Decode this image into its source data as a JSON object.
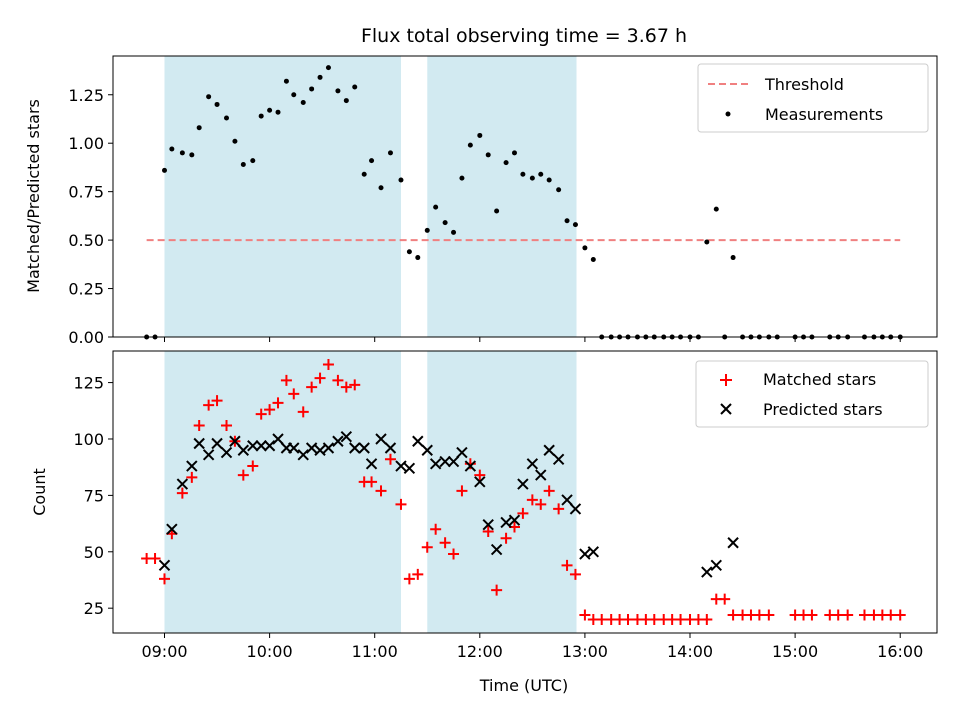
{
  "chart_data": {
    "type": "scatter",
    "title": "Flux total observing time = 3.67 h",
    "xlabel": "Time (UTC)",
    "x_ticks": [
      {
        "hour": 9,
        "label": "09:00"
      },
      {
        "hour": 10,
        "label": "10:00"
      },
      {
        "hour": 11,
        "label": "11:00"
      },
      {
        "hour": 12,
        "label": "12:00"
      },
      {
        "hour": 13,
        "label": "13:00"
      },
      {
        "hour": 14,
        "label": "14:00"
      },
      {
        "hour": 15,
        "label": "15:00"
      },
      {
        "hour": 16,
        "label": "16:00"
      }
    ],
    "xlim": [
      8.51,
      16.35
    ],
    "shaded_intervals": [
      [
        9.0,
        11.25
      ],
      [
        11.5,
        12.92
      ]
    ],
    "colors": {
      "shade": "#add8e6",
      "threshold": "#f08080",
      "matched": "#ff0000",
      "predicted": "#000000",
      "measurement": "#000000"
    },
    "top_panel": {
      "ylabel": "Matched/Predicted stars",
      "ylim": [
        0,
        1.45
      ],
      "yticks": [
        "0.00",
        "0.25",
        "0.50",
        "0.75",
        "1.00",
        "1.25"
      ],
      "threshold": {
        "value": 0.5,
        "x_range": [
          8.83,
          16.0
        ],
        "label": "Threshold"
      },
      "legend": [
        "Threshold",
        "Measurements"
      ],
      "measurements": [
        [
          8.83,
          0.0
        ],
        [
          8.91,
          0.0
        ],
        [
          9.0,
          0.86
        ],
        [
          9.07,
          0.97
        ],
        [
          9.17,
          0.95
        ],
        [
          9.26,
          0.94
        ],
        [
          9.33,
          1.08
        ],
        [
          9.42,
          1.24
        ],
        [
          9.5,
          1.2
        ],
        [
          9.59,
          1.13
        ],
        [
          9.67,
          1.01
        ],
        [
          9.75,
          0.89
        ],
        [
          9.84,
          0.91
        ],
        [
          9.92,
          1.14
        ],
        [
          10.0,
          1.17
        ],
        [
          10.08,
          1.16
        ],
        [
          10.16,
          1.32
        ],
        [
          10.23,
          1.25
        ],
        [
          10.32,
          1.21
        ],
        [
          10.4,
          1.28
        ],
        [
          10.48,
          1.34
        ],
        [
          10.56,
          1.39
        ],
        [
          10.65,
          1.27
        ],
        [
          10.73,
          1.22
        ],
        [
          10.81,
          1.29
        ],
        [
          10.9,
          0.84
        ],
        [
          10.97,
          0.91
        ],
        [
          11.06,
          0.77
        ],
        [
          11.15,
          0.95
        ],
        [
          11.25,
          0.81
        ],
        [
          11.33,
          0.44
        ],
        [
          11.41,
          0.41
        ],
        [
          11.5,
          0.55
        ],
        [
          11.58,
          0.67
        ],
        [
          11.67,
          0.59
        ],
        [
          11.75,
          0.54
        ],
        [
          11.83,
          0.82
        ],
        [
          11.91,
          0.99
        ],
        [
          12.0,
          1.04
        ],
        [
          12.08,
          0.94
        ],
        [
          12.16,
          0.65
        ],
        [
          12.25,
          0.9
        ],
        [
          12.33,
          0.95
        ],
        [
          12.41,
          0.84
        ],
        [
          12.5,
          0.82
        ],
        [
          12.58,
          0.84
        ],
        [
          12.66,
          0.81
        ],
        [
          12.75,
          0.76
        ],
        [
          12.83,
          0.6
        ],
        [
          12.91,
          0.58
        ],
        [
          13.0,
          0.46
        ],
        [
          13.08,
          0.4
        ],
        [
          13.16,
          0
        ],
        [
          13.25,
          0
        ],
        [
          13.33,
          0
        ],
        [
          13.41,
          0
        ],
        [
          13.5,
          0
        ],
        [
          13.58,
          0
        ],
        [
          13.66,
          0
        ],
        [
          13.75,
          0
        ],
        [
          13.83,
          0
        ],
        [
          13.91,
          0
        ],
        [
          14.0,
          0
        ],
        [
          14.08,
          0
        ],
        [
          14.16,
          0.49
        ],
        [
          14.25,
          0.66
        ],
        [
          14.33,
          0
        ],
        [
          14.41,
          0.41
        ],
        [
          14.5,
          0
        ],
        [
          14.58,
          0
        ],
        [
          14.66,
          0
        ],
        [
          14.75,
          0
        ],
        [
          14.83,
          0
        ],
        [
          15.0,
          0
        ],
        [
          15.08,
          0
        ],
        [
          15.16,
          0
        ],
        [
          15.33,
          0
        ],
        [
          15.41,
          0
        ],
        [
          15.5,
          0
        ],
        [
          15.66,
          0
        ],
        [
          15.75,
          0
        ],
        [
          15.83,
          0
        ],
        [
          15.91,
          0
        ],
        [
          16.0,
          0
        ]
      ]
    },
    "bottom_panel": {
      "ylabel": "Count",
      "ylim": [
        14,
        139
      ],
      "yticks": [
        "25",
        "50",
        "75",
        "100",
        "125"
      ],
      "legend": [
        "Matched stars",
        "Predicted stars"
      ],
      "matched": [
        [
          8.83,
          47
        ],
        [
          8.91,
          47
        ],
        [
          9.0,
          38
        ],
        [
          9.07,
          58
        ],
        [
          9.17,
          76
        ],
        [
          9.26,
          83
        ],
        [
          9.33,
          106
        ],
        [
          9.42,
          115
        ],
        [
          9.5,
          117
        ],
        [
          9.59,
          106
        ],
        [
          9.67,
          99
        ],
        [
          9.75,
          84
        ],
        [
          9.84,
          88
        ],
        [
          9.92,
          111
        ],
        [
          10.0,
          113
        ],
        [
          10.08,
          116
        ],
        [
          10.16,
          126
        ],
        [
          10.23,
          120
        ],
        [
          10.32,
          112
        ],
        [
          10.4,
          123
        ],
        [
          10.48,
          127
        ],
        [
          10.56,
          133
        ],
        [
          10.65,
          126
        ],
        [
          10.73,
          123
        ],
        [
          10.81,
          124
        ],
        [
          10.9,
          81
        ],
        [
          10.97,
          81
        ],
        [
          11.06,
          77
        ],
        [
          11.15,
          91
        ],
        [
          11.25,
          71
        ],
        [
          11.33,
          38
        ],
        [
          11.41,
          40
        ],
        [
          11.5,
          52
        ],
        [
          11.58,
          60
        ],
        [
          11.67,
          54
        ],
        [
          11.75,
          49
        ],
        [
          11.83,
          77
        ],
        [
          11.91,
          89
        ],
        [
          12.0,
          84
        ],
        [
          12.08,
          59
        ],
        [
          12.16,
          33
        ],
        [
          12.25,
          56
        ],
        [
          12.33,
          61
        ],
        [
          12.41,
          67
        ],
        [
          12.5,
          73
        ],
        [
          12.58,
          71
        ],
        [
          12.66,
          77
        ],
        [
          12.75,
          69
        ],
        [
          12.83,
          44
        ],
        [
          12.91,
          40
        ],
        [
          13.0,
          22
        ],
        [
          13.08,
          20
        ],
        [
          13.16,
          20
        ],
        [
          13.25,
          20
        ],
        [
          13.33,
          20
        ],
        [
          13.41,
          20
        ],
        [
          13.5,
          20
        ],
        [
          13.58,
          20
        ],
        [
          13.66,
          20
        ],
        [
          13.75,
          20
        ],
        [
          13.83,
          20
        ],
        [
          13.91,
          20
        ],
        [
          14.0,
          20
        ],
        [
          14.08,
          20
        ],
        [
          14.16,
          20
        ],
        [
          14.25,
          29
        ],
        [
          14.33,
          29
        ],
        [
          14.41,
          22
        ],
        [
          14.5,
          22
        ],
        [
          14.58,
          22
        ],
        [
          14.66,
          22
        ],
        [
          14.75,
          22
        ],
        [
          15.0,
          22
        ],
        [
          15.08,
          22
        ],
        [
          15.16,
          22
        ],
        [
          15.33,
          22
        ],
        [
          15.41,
          22
        ],
        [
          15.5,
          22
        ],
        [
          15.66,
          22
        ],
        [
          15.75,
          22
        ],
        [
          15.83,
          22
        ],
        [
          15.91,
          22
        ],
        [
          16.0,
          22
        ]
      ],
      "predicted": [
        [
          9.0,
          44
        ],
        [
          9.07,
          60
        ],
        [
          9.17,
          80
        ],
        [
          9.26,
          88
        ],
        [
          9.33,
          98
        ],
        [
          9.42,
          93
        ],
        [
          9.5,
          98
        ],
        [
          9.59,
          94
        ],
        [
          9.67,
          99
        ],
        [
          9.75,
          95
        ],
        [
          9.84,
          97
        ],
        [
          9.92,
          97
        ],
        [
          10.0,
          97
        ],
        [
          10.08,
          100
        ],
        [
          10.16,
          96
        ],
        [
          10.23,
          96
        ],
        [
          10.32,
          93
        ],
        [
          10.4,
          96
        ],
        [
          10.48,
          95
        ],
        [
          10.56,
          96
        ],
        [
          10.65,
          99
        ],
        [
          10.73,
          101
        ],
        [
          10.81,
          96
        ],
        [
          10.9,
          96
        ],
        [
          10.97,
          89
        ],
        [
          11.06,
          100
        ],
        [
          11.15,
          96
        ],
        [
          11.25,
          88
        ],
        [
          11.33,
          87
        ],
        [
          11.41,
          99
        ],
        [
          11.5,
          95
        ],
        [
          11.58,
          89
        ],
        [
          11.67,
          90
        ],
        [
          11.75,
          90
        ],
        [
          11.83,
          94
        ],
        [
          11.91,
          88
        ],
        [
          12.0,
          81
        ],
        [
          12.08,
          62
        ],
        [
          12.16,
          51
        ],
        [
          12.25,
          63
        ],
        [
          12.33,
          64
        ],
        [
          12.41,
          80
        ],
        [
          12.5,
          89
        ],
        [
          12.58,
          84
        ],
        [
          12.66,
          95
        ],
        [
          12.75,
          91
        ],
        [
          12.83,
          73
        ],
        [
          12.91,
          69
        ],
        [
          13.0,
          49
        ],
        [
          13.08,
          50
        ],
        [
          14.16,
          41
        ],
        [
          14.25,
          44
        ],
        [
          14.41,
          54
        ]
      ]
    }
  }
}
